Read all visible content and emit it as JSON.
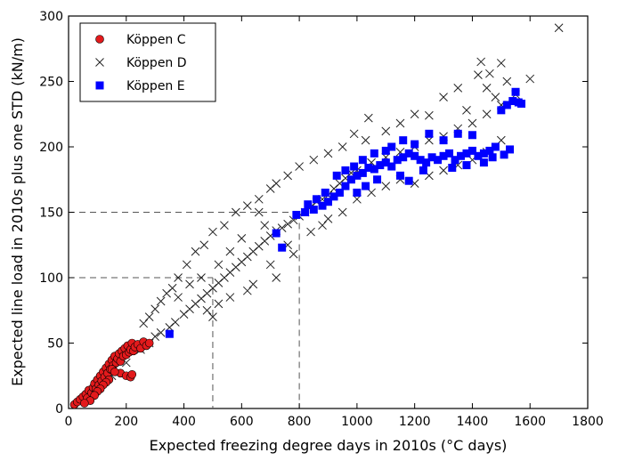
{
  "chart_data": {
    "type": "scatter",
    "xlabel": "Expected freezing degree days in 2010s (°C days)",
    "ylabel": "Expected line load in 2010s plus one STD (kN/m)",
    "xlim": [
      0,
      1800
    ],
    "ylim": [
      0,
      300
    ],
    "xticks": [
      0,
      200,
      400,
      600,
      800,
      1000,
      1200,
      1400,
      1600,
      1800
    ],
    "yticks": [
      0,
      50,
      100,
      150,
      200,
      250,
      300
    ],
    "grid": false,
    "legend_position": "top-left",
    "reference_lines": [
      {
        "x": 500,
        "y": 100
      },
      {
        "x": 800,
        "y": 150
      }
    ],
    "series": [
      {
        "name": "Köppen C",
        "marker": "circle",
        "color": "#e31a1c",
        "points": [
          [
            20,
            3
          ],
          [
            30,
            5
          ],
          [
            40,
            7
          ],
          [
            50,
            9
          ],
          [
            60,
            11
          ],
          [
            65,
            8
          ],
          [
            70,
            14
          ],
          [
            80,
            12
          ],
          [
            85,
            16
          ],
          [
            90,
            19
          ],
          [
            95,
            15
          ],
          [
            100,
            22
          ],
          [
            105,
            18
          ],
          [
            110,
            25
          ],
          [
            115,
            21
          ],
          [
            120,
            28
          ],
          [
            125,
            24
          ],
          [
            130,
            31
          ],
          [
            135,
            27
          ],
          [
            140,
            34
          ],
          [
            145,
            30
          ],
          [
            150,
            37
          ],
          [
            155,
            33
          ],
          [
            160,
            40
          ],
          [
            165,
            35
          ],
          [
            170,
            38
          ],
          [
            175,
            42
          ],
          [
            180,
            36
          ],
          [
            185,
            44
          ],
          [
            190,
            40
          ],
          [
            195,
            46
          ],
          [
            200,
            41
          ],
          [
            205,
            48
          ],
          [
            210,
            43
          ],
          [
            215,
            45
          ],
          [
            220,
            50
          ],
          [
            225,
            44
          ],
          [
            230,
            47
          ],
          [
            240,
            49
          ],
          [
            250,
            46
          ],
          [
            260,
            51
          ],
          [
            270,
            48
          ],
          [
            280,
            50
          ],
          [
            180,
            27
          ],
          [
            200,
            25
          ],
          [
            215,
            24
          ],
          [
            220,
            26
          ],
          [
            150,
            30
          ],
          [
            160,
            28
          ],
          [
            140,
            22
          ],
          [
            130,
            20
          ],
          [
            120,
            18
          ],
          [
            110,
            15
          ],
          [
            100,
            13
          ],
          [
            90,
            10
          ],
          [
            75,
            6
          ],
          [
            55,
            4
          ]
        ]
      },
      {
        "name": "Köppen D",
        "marker": "x",
        "color": "#222222",
        "points": [
          [
            150,
            25
          ],
          [
            200,
            35
          ],
          [
            250,
            45
          ],
          [
            280,
            50
          ],
          [
            300,
            55
          ],
          [
            320,
            58
          ],
          [
            350,
            62
          ],
          [
            370,
            66
          ],
          [
            400,
            72
          ],
          [
            420,
            76
          ],
          [
            440,
            80
          ],
          [
            460,
            84
          ],
          [
            480,
            88
          ],
          [
            500,
            92
          ],
          [
            520,
            96
          ],
          [
            540,
            100
          ],
          [
            560,
            104
          ],
          [
            580,
            108
          ],
          [
            600,
            112
          ],
          [
            620,
            116
          ],
          [
            640,
            120
          ],
          [
            660,
            124
          ],
          [
            680,
            128
          ],
          [
            700,
            132
          ],
          [
            720,
            136
          ],
          [
            740,
            138
          ],
          [
            760,
            141
          ],
          [
            780,
            144
          ],
          [
            800,
            147
          ],
          [
            820,
            150
          ],
          [
            840,
            154
          ],
          [
            860,
            158
          ],
          [
            880,
            160
          ],
          [
            900,
            163
          ],
          [
            920,
            168
          ],
          [
            940,
            172
          ],
          [
            960,
            176
          ],
          [
            980,
            180
          ],
          [
            1000,
            182
          ],
          [
            1050,
            188
          ],
          [
            1100,
            192
          ],
          [
            1150,
            196
          ],
          [
            1200,
            200
          ],
          [
            1250,
            205
          ],
          [
            1300,
            208
          ],
          [
            1350,
            214
          ],
          [
            1400,
            218
          ],
          [
            1450,
            225
          ],
          [
            1500,
            232
          ],
          [
            1550,
            240
          ],
          [
            1600,
            252
          ],
          [
            1700,
            291
          ],
          [
            1430,
            265
          ],
          [
            1460,
            256
          ],
          [
            1500,
            264
          ],
          [
            1520,
            250
          ],
          [
            1420,
            255
          ],
          [
            1450,
            245
          ],
          [
            1480,
            238
          ],
          [
            1380,
            228
          ],
          [
            1350,
            245
          ],
          [
            1300,
            238
          ],
          [
            1250,
            224
          ],
          [
            1200,
            225
          ],
          [
            1150,
            218
          ],
          [
            1100,
            212
          ],
          [
            1040,
            222
          ],
          [
            1030,
            205
          ],
          [
            990,
            210
          ],
          [
            950,
            200
          ],
          [
            900,
            195
          ],
          [
            850,
            190
          ],
          [
            800,
            185
          ],
          [
            760,
            178
          ],
          [
            720,
            172
          ],
          [
            700,
            168
          ],
          [
            660,
            160
          ],
          [
            620,
            155
          ],
          [
            580,
            150
          ],
          [
            540,
            140
          ],
          [
            500,
            135
          ],
          [
            470,
            125
          ],
          [
            440,
            120
          ],
          [
            410,
            110
          ],
          [
            380,
            100
          ],
          [
            360,
            92
          ],
          [
            340,
            88
          ],
          [
            320,
            82
          ],
          [
            300,
            76
          ],
          [
            280,
            70
          ],
          [
            260,
            65
          ],
          [
            500,
            70
          ],
          [
            520,
            80
          ],
          [
            480,
            75
          ],
          [
            620,
            90
          ],
          [
            640,
            95
          ],
          [
            560,
            85
          ],
          [
            700,
            110
          ],
          [
            760,
            125
          ],
          [
            780,
            118
          ],
          [
            720,
            100
          ],
          [
            840,
            135
          ],
          [
            880,
            140
          ],
          [
            900,
            145
          ],
          [
            950,
            150
          ],
          [
            1000,
            160
          ],
          [
            1050,
            165
          ],
          [
            1100,
            170
          ],
          [
            1150,
            175
          ],
          [
            1200,
            172
          ],
          [
            1250,
            178
          ],
          [
            1300,
            182
          ],
          [
            1350,
            186
          ],
          [
            1400,
            190
          ],
          [
            1450,
            196
          ],
          [
            1500,
            205
          ],
          [
            660,
            150
          ],
          [
            680,
            140
          ],
          [
            600,
            130
          ],
          [
            560,
            120
          ],
          [
            520,
            110
          ],
          [
            460,
            100
          ],
          [
            420,
            95
          ],
          [
            380,
            85
          ]
        ]
      },
      {
        "name": "Köppen E",
        "marker": "square",
        "color": "#0000ff",
        "points": [
          [
            350,
            57
          ],
          [
            720,
            134
          ],
          [
            740,
            123
          ],
          [
            790,
            148
          ],
          [
            820,
            150
          ],
          [
            850,
            152
          ],
          [
            880,
            155
          ],
          [
            900,
            158
          ],
          [
            920,
            162
          ],
          [
            940,
            165
          ],
          [
            960,
            170
          ],
          [
            980,
            175
          ],
          [
            1000,
            178
          ],
          [
            1020,
            180
          ],
          [
            1040,
            184
          ],
          [
            1060,
            183
          ],
          [
            1080,
            186
          ],
          [
            1100,
            188
          ],
          [
            1120,
            185
          ],
          [
            1140,
            190
          ],
          [
            1160,
            192
          ],
          [
            1180,
            195
          ],
          [
            1200,
            193
          ],
          [
            1220,
            190
          ],
          [
            1240,
            188
          ],
          [
            1260,
            192
          ],
          [
            1280,
            190
          ],
          [
            1300,
            193
          ],
          [
            1320,
            195
          ],
          [
            1340,
            190
          ],
          [
            1360,
            193
          ],
          [
            1380,
            195
          ],
          [
            1400,
            197
          ],
          [
            1420,
            193
          ],
          [
            1440,
            195
          ],
          [
            1460,
            197
          ],
          [
            1480,
            200
          ],
          [
            1500,
            228
          ],
          [
            1520,
            232
          ],
          [
            1540,
            235
          ],
          [
            1550,
            242
          ],
          [
            1560,
            234
          ],
          [
            1570,
            233
          ],
          [
            1400,
            209
          ],
          [
            1350,
            210
          ],
          [
            1300,
            205
          ],
          [
            1250,
            210
          ],
          [
            1200,
            202
          ],
          [
            1160,
            205
          ],
          [
            1120,
            200
          ],
          [
            1100,
            197
          ],
          [
            1060,
            195
          ],
          [
            1020,
            190
          ],
          [
            990,
            185
          ],
          [
            960,
            182
          ],
          [
            930,
            178
          ],
          [
            890,
            165
          ],
          [
            860,
            160
          ],
          [
            830,
            156
          ],
          [
            1000,
            165
          ],
          [
            1030,
            170
          ],
          [
            1070,
            175
          ],
          [
            1150,
            178
          ],
          [
            1180,
            174
          ],
          [
            1230,
            182
          ],
          [
            1330,
            184
          ],
          [
            1380,
            186
          ],
          [
            1440,
            188
          ],
          [
            1470,
            192
          ],
          [
            1510,
            194
          ],
          [
            1530,
            198
          ]
        ]
      }
    ]
  }
}
